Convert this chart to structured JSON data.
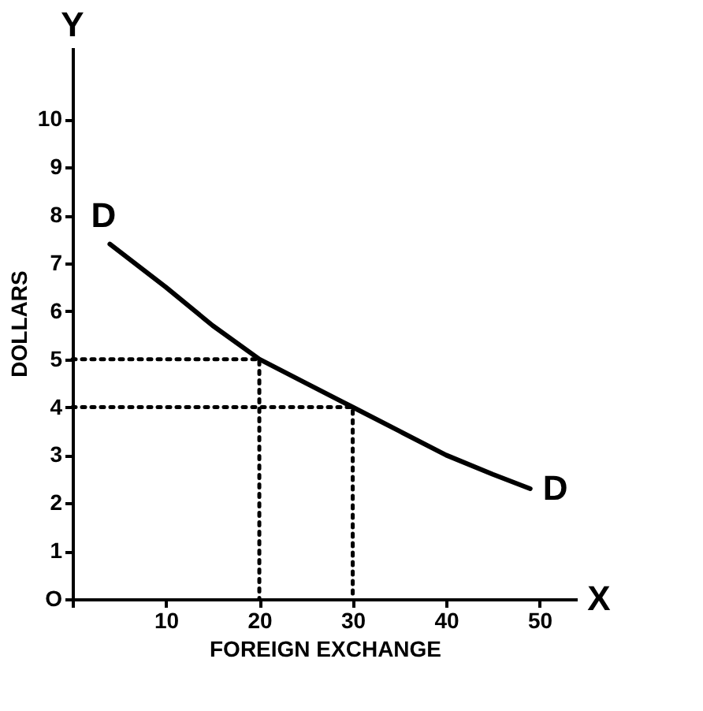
{
  "chart_data": {
    "type": "line",
    "xlabel": "FOREIGN EXCHANGE",
    "ylabel": "DOLLARS",
    "xlim": [
      0,
      54
    ],
    "ylim": [
      0,
      11.5
    ],
    "xticks": [
      {
        "value": 0,
        "label": null
      },
      10,
      20,
      30,
      40,
      50
    ],
    "yticks": [
      {
        "value": 0,
        "label": "O"
      },
      1,
      2,
      3,
      4,
      5,
      6,
      7,
      8,
      9,
      10
    ],
    "grid": false,
    "marker": "none",
    "series": [
      {
        "color": "#000000",
        "line_style": "solid",
        "x": [
          4,
          10,
          15,
          20,
          25,
          30,
          35,
          40,
          45,
          49
        ],
        "values": [
          7.4,
          6.5,
          5.7,
          5,
          4.5,
          4,
          3.5,
          3,
          2.6,
          2.3
        ]
      },
      {
        "color": "#000000",
        "line_style": "dotted",
        "x": [
          0,
          20,
          20
        ],
        "values": [
          5,
          5,
          0
        ]
      },
      {
        "color": "#000000",
        "line_style": "dotted",
        "x": [
          0,
          30,
          30
        ],
        "values": [
          4,
          4,
          0
        ]
      }
    ],
    "annotations": [
      "D",
      "D",
      "Y",
      "X"
    ]
  }
}
